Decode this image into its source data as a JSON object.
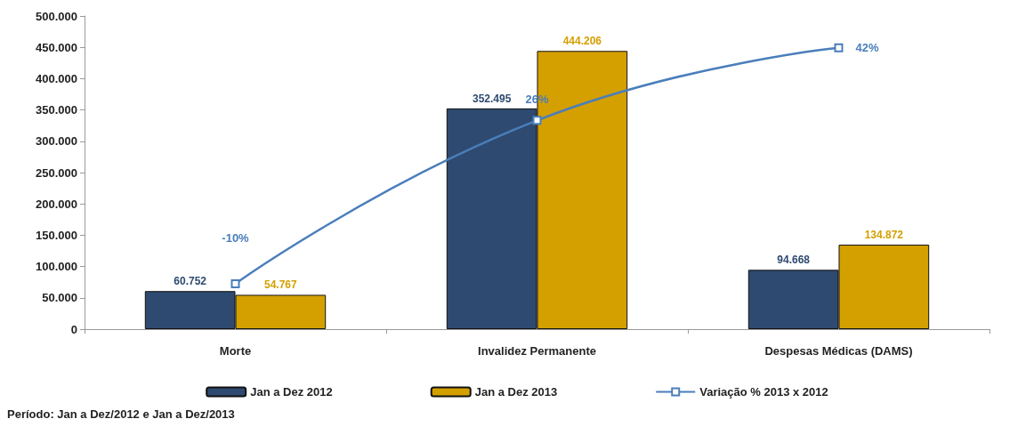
{
  "chart_data": {
    "type": "bar",
    "categories": [
      "Morte",
      "Invalidez Permanente",
      "Despesas Médicas (DAMS)"
    ],
    "series": [
      {
        "name": "Jan a Dez 2012",
        "color": "#2e4a70",
        "values": [
          60752,
          352495,
          94668
        ],
        "value_labels": [
          "60.752",
          "352.495",
          "94.668"
        ]
      },
      {
        "name": "Jan a Dez 2013",
        "color": "#d4a000",
        "values": [
          54767,
          444206,
          134872
        ],
        "value_labels": [
          "54.767",
          "444.206",
          "134.872"
        ]
      },
      {
        "name": "Variação % 2013 x 2012",
        "type": "line",
        "axis": "y2",
        "color": "#4a7ebb",
        "values": [
          -10,
          26,
          42
        ],
        "value_labels": [
          "-10%",
          "26%",
          "42%"
        ],
        "marker": "square"
      }
    ],
    "ylim": [
      0,
      500000
    ],
    "yticks": [
      {
        "value": 0,
        "label": "0"
      },
      {
        "value": 50000,
        "label": "50.000"
      },
      {
        "value": 100000,
        "label": "100.000"
      },
      {
        "value": 150000,
        "label": "150.000"
      },
      {
        "value": 200000,
        "label": "200.000"
      },
      {
        "value": 250000,
        "label": "250.000"
      },
      {
        "value": 300000,
        "label": "300.000"
      },
      {
        "value": 350000,
        "label": "350.000"
      },
      {
        "value": 400000,
        "label": "400.000"
      },
      {
        "value": 450000,
        "label": "450.000"
      },
      {
        "value": 500000,
        "label": "500.000"
      }
    ],
    "y2lim": [
      -20,
      49
    ],
    "tick_labels": "xy",
    "legend": "bottom",
    "grid": false,
    "annotations": [
      "Período: Jan a Dez/2012 e Jan a Dez/2013"
    ]
  }
}
